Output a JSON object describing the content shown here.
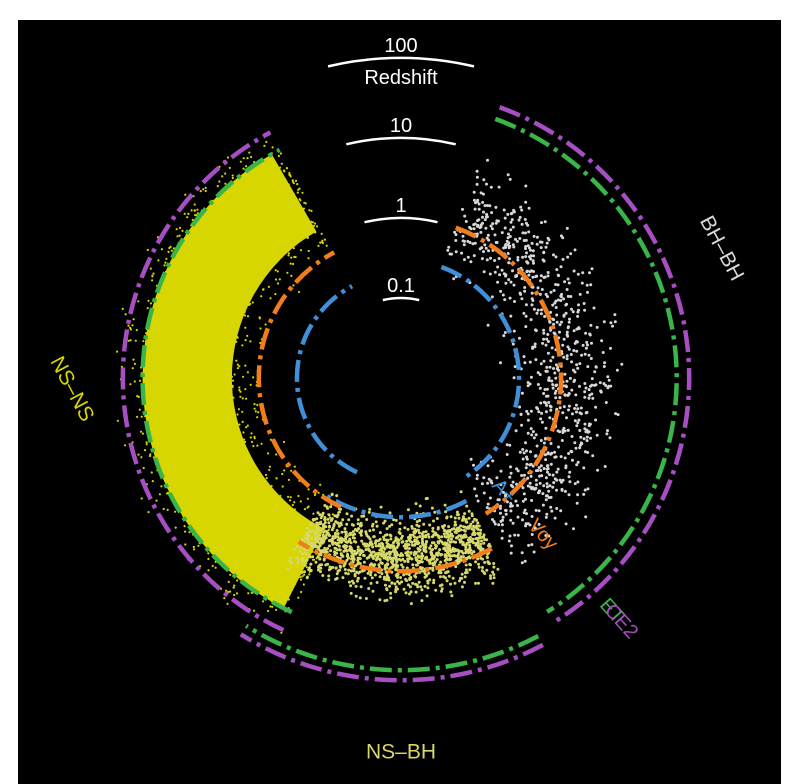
{
  "chart_data": {
    "type": "scatter",
    "title": "",
    "radial_axis": {
      "label": "Redshift",
      "scale": "log",
      "ticks": [
        "0.1",
        "1",
        "10",
        "100"
      ],
      "tick_values": [
        0.1,
        1,
        10,
        100
      ]
    },
    "sectors": [
      {
        "name": "NS–NS",
        "color": "#d7d600",
        "angle_range_deg": [
          -155,
          -28
        ],
        "z_band": [
          0.9,
          28
        ],
        "dense_core": [
          1.3,
          17
        ],
        "points": 2600
      },
      {
        "name": "BH–BH",
        "color": "#d8d8d8",
        "angle_range_deg": [
          20,
          148
        ],
        "z_band": [
          0.3,
          6
        ],
        "points": 900
      },
      {
        "name": "NS–BH",
        "color": "#d6d86a",
        "angle_range_deg": [
          152,
          212
        ],
        "z_band": [
          0.6,
          5
        ],
        "points": 1300
      }
    ],
    "detectors": [
      {
        "name": "A+",
        "color": "#3f8fd9",
        "horizon_z": [
          0.2,
          0.3,
          0.55
        ]
      },
      {
        "name": "Voy",
        "color": "#f07e1d",
        "horizon_z": [
          0.6,
          1.0,
          2.6
        ]
      },
      {
        "name": "ET",
        "color": "#39b54a",
        "horizon_z": [
          17,
          28,
          45
        ]
      },
      {
        "name": "CE2",
        "color": "#a64fc2",
        "horizon_z": [
          30,
          40,
          60
        ]
      }
    ],
    "grid": false,
    "legend": "inline"
  }
}
